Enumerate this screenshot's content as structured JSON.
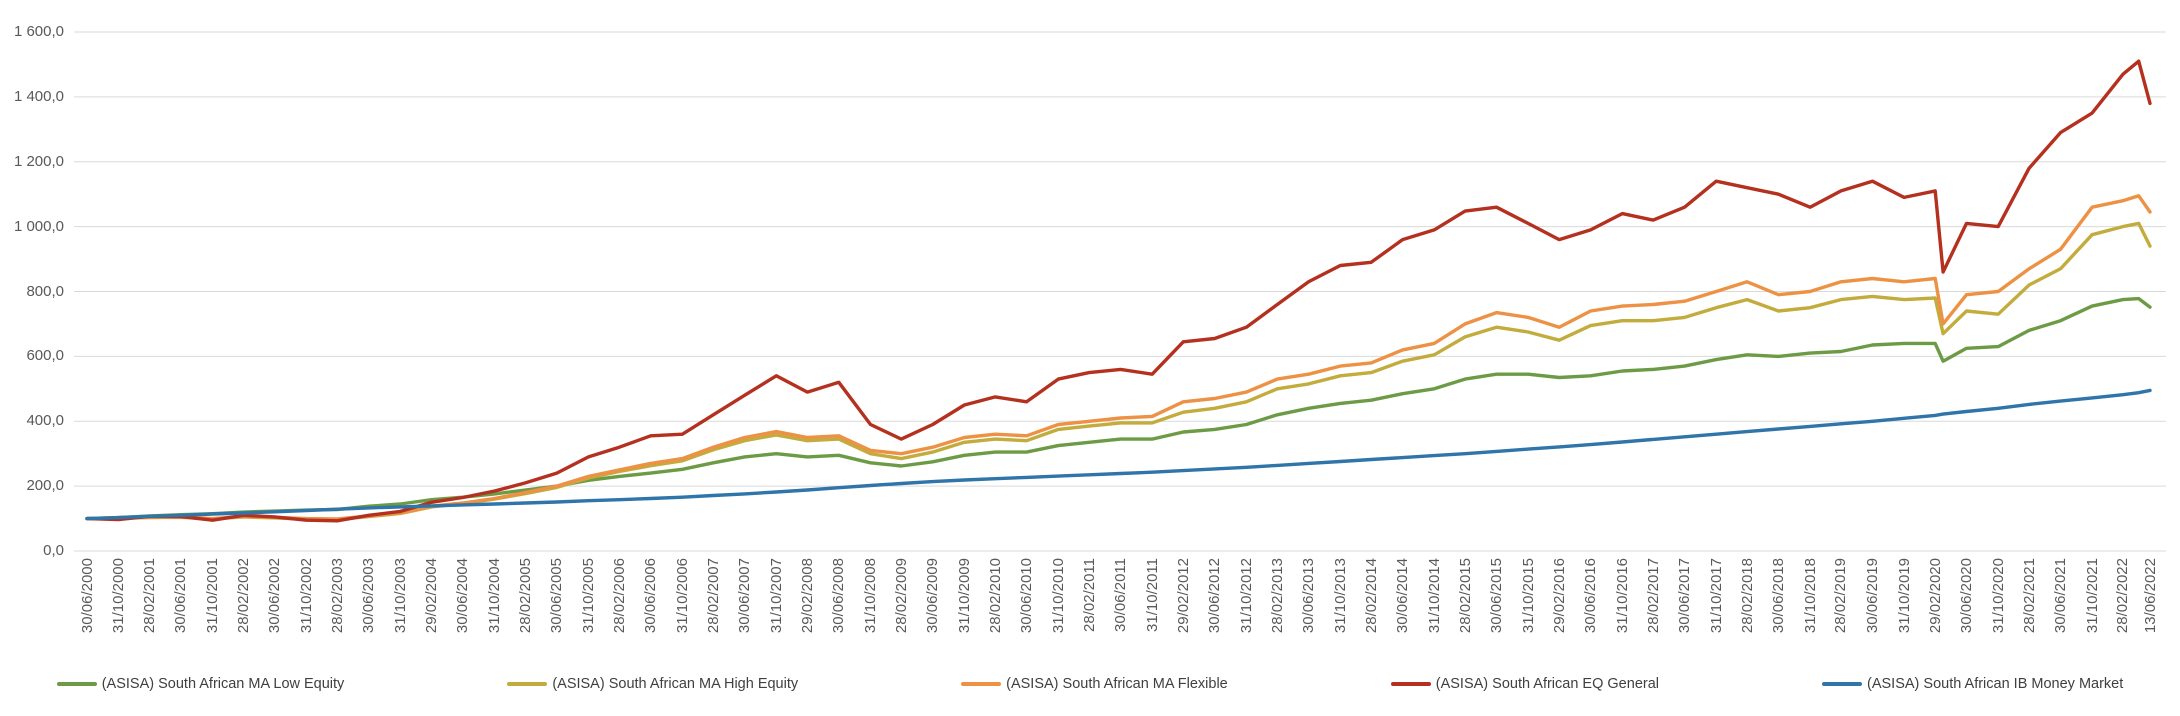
{
  "chart_data": {
    "type": "line",
    "title": "",
    "xlabel": "",
    "ylabel": "",
    "ylim": [
      0,
      1600
    ],
    "y_tick_step": 200,
    "y_tick_labels": [
      "0,0",
      "200,0",
      "400,0",
      "600,0",
      "800,0",
      "1 000,0",
      "1 200,0",
      "1 400,0",
      "1 600,0"
    ],
    "grid": "horizontal",
    "legend_position": "bottom",
    "x_tick_labels": [
      "30/06/2000",
      "31/10/2000",
      "28/02/2001",
      "30/06/2001",
      "31/10/2001",
      "28/02/2002",
      "30/06/2002",
      "31/10/2002",
      "28/02/2003",
      "30/06/2003",
      "31/10/2003",
      "29/02/2004",
      "30/06/2004",
      "31/10/2004",
      "28/02/2005",
      "30/06/2005",
      "31/10/2005",
      "28/02/2006",
      "30/06/2006",
      "31/10/2006",
      "28/02/2007",
      "30/06/2007",
      "31/10/2007",
      "29/02/2008",
      "30/06/2008",
      "31/10/2008",
      "28/02/2009",
      "30/06/2009",
      "31/10/2009",
      "28/02/2010",
      "30/06/2010",
      "31/10/2010",
      "28/02/2011",
      "30/06/2011",
      "31/10/2011",
      "29/02/2012",
      "30/06/2012",
      "31/10/2012",
      "28/02/2013",
      "30/06/2013",
      "31/10/2013",
      "28/02/2014",
      "30/06/2014",
      "31/10/2014",
      "28/02/2015",
      "30/06/2015",
      "31/10/2015",
      "29/02/2016",
      "30/06/2016",
      "31/10/2016",
      "28/02/2017",
      "30/06/2017",
      "31/10/2017",
      "28/02/2018",
      "30/06/2018",
      "31/10/2018",
      "28/02/2019",
      "30/06/2019",
      "31/10/2019",
      "29/02/2020",
      "30/06/2020",
      "31/10/2020",
      "28/02/2021",
      "30/06/2021",
      "31/10/2021",
      "28/02/2022",
      "13/06/2022"
    ],
    "x_dates": [
      "30/06/2000",
      "31/10/2000",
      "28/02/2001",
      "30/06/2001",
      "31/10/2001",
      "28/02/2002",
      "30/06/2002",
      "31/10/2002",
      "28/02/2003",
      "30/06/2003",
      "31/10/2003",
      "29/02/2004",
      "30/06/2004",
      "31/10/2004",
      "28/02/2005",
      "30/06/2005",
      "31/10/2005",
      "28/02/2006",
      "30/06/2006",
      "31/10/2006",
      "28/02/2007",
      "30/06/2007",
      "31/10/2007",
      "29/02/2008",
      "30/06/2008",
      "31/10/2008",
      "28/02/2009",
      "30/06/2009",
      "31/10/2009",
      "28/02/2010",
      "30/06/2010",
      "31/10/2010",
      "28/02/2011",
      "30/06/2011",
      "31/10/2011",
      "29/02/2012",
      "30/06/2012",
      "31/10/2012",
      "28/02/2013",
      "30/06/2013",
      "31/10/2013",
      "28/02/2014",
      "30/06/2014",
      "31/10/2014",
      "28/02/2015",
      "30/06/2015",
      "31/10/2015",
      "29/02/2016",
      "30/06/2016",
      "31/10/2016",
      "28/02/2017",
      "30/06/2017",
      "31/10/2017",
      "28/02/2018",
      "30/06/2018",
      "31/10/2018",
      "28/02/2019",
      "30/06/2019",
      "31/10/2019",
      "29/02/2020",
      "31/03/2020",
      "30/06/2020",
      "31/10/2020",
      "28/02/2021",
      "30/06/2021",
      "31/10/2021",
      "28/02/2022",
      "30/04/2022",
      "13/06/2022"
    ],
    "series": [
      {
        "name": "(ASISA) South African MA Low Equity",
        "color": "#6D9B45",
        "values": [
          100,
          103,
          108,
          112,
          115,
          120,
          123,
          126,
          128,
          138,
          145,
          158,
          166,
          176,
          188,
          200,
          218,
          230,
          240,
          252,
          272,
          290,
          300,
          290,
          295,
          272,
          262,
          275,
          295,
          305,
          305,
          325,
          335,
          345,
          345,
          367,
          375,
          390,
          420,
          440,
          455,
          465,
          485,
          500,
          530,
          545,
          545,
          535,
          540,
          555,
          560,
          570,
          590,
          605,
          600,
          610,
          615,
          635,
          640,
          640,
          585,
          625,
          630,
          680,
          710,
          755,
          775,
          778,
          752
        ]
      },
      {
        "name": "(ASISA) South African MA High Equity",
        "color": "#C3AC3E",
        "values": [
          100,
          101,
          103,
          104,
          99,
          105,
          102,
          98,
          97,
          106,
          116,
          136,
          146,
          160,
          177,
          196,
          225,
          245,
          263,
          278,
          312,
          340,
          358,
          340,
          345,
          300,
          285,
          305,
          335,
          345,
          340,
          375,
          385,
          395,
          395,
          428,
          440,
          460,
          500,
          515,
          540,
          550,
          585,
          605,
          660,
          690,
          675,
          650,
          695,
          710,
          710,
          720,
          750,
          775,
          740,
          750,
          775,
          785,
          775,
          780,
          670,
          740,
          730,
          820,
          870,
          975,
          1000,
          1010,
          940
        ]
      },
      {
        "name": "(ASISA) South African MA Flexible",
        "color": "#ED9144",
        "values": [
          100,
          101,
          104,
          105,
          100,
          106,
          104,
          100,
          99,
          108,
          118,
          138,
          148,
          162,
          180,
          200,
          230,
          250,
          270,
          285,
          320,
          350,
          368,
          350,
          355,
          310,
          300,
          320,
          350,
          360,
          355,
          390,
          400,
          410,
          415,
          460,
          470,
          490,
          530,
          545,
          570,
          580,
          620,
          640,
          700,
          735,
          720,
          690,
          740,
          755,
          760,
          770,
          800,
          830,
          790,
          800,
          830,
          840,
          830,
          840,
          700,
          790,
          800,
          870,
          930,
          1060,
          1080,
          1095,
          1045
        ]
      },
      {
        "name": "(ASISA) South African EQ General",
        "color": "#B4301F",
        "values": [
          100,
          97,
          107,
          106,
          95,
          110,
          105,
          95,
          93,
          110,
          122,
          150,
          165,
          185,
          210,
          240,
          290,
          320,
          355,
          360,
          420,
          480,
          540,
          490,
          520,
          390,
          345,
          390,
          450,
          475,
          460,
          530,
          550,
          560,
          545,
          645,
          655,
          690,
          760,
          830,
          880,
          890,
          960,
          990,
          1048,
          1060,
          1010,
          960,
          990,
          1040,
          1020,
          1060,
          1140,
          1120,
          1100,
          1060,
          1110,
          1140,
          1090,
          1110,
          860,
          1010,
          1000,
          1180,
          1290,
          1350,
          1470,
          1510,
          1380
        ]
      },
      {
        "name": "(ASISA) South African IB Money Market",
        "color": "#2F75A9",
        "values": [
          100,
          103,
          107,
          110,
          114,
          117,
          121,
          125,
          129,
          133,
          136,
          139,
          142,
          145,
          148,
          151,
          155,
          158,
          162,
          166,
          171,
          176,
          182,
          188,
          195,
          202,
          208,
          214,
          219,
          223,
          227,
          231,
          235,
          239,
          243,
          248,
          253,
          258,
          264,
          270,
          276,
          282,
          288,
          294,
          300,
          307,
          314,
          321,
          328,
          336,
          344,
          352,
          360,
          368,
          376,
          384,
          392,
          400,
          409,
          418,
          422,
          430,
          440,
          452,
          462,
          472,
          482,
          488,
          495
        ]
      }
    ],
    "colors": {
      "gridline": "#D9D9D9",
      "axis_label": "#595959",
      "legend_text": "#404040",
      "background": "#FFFFFF"
    }
  }
}
